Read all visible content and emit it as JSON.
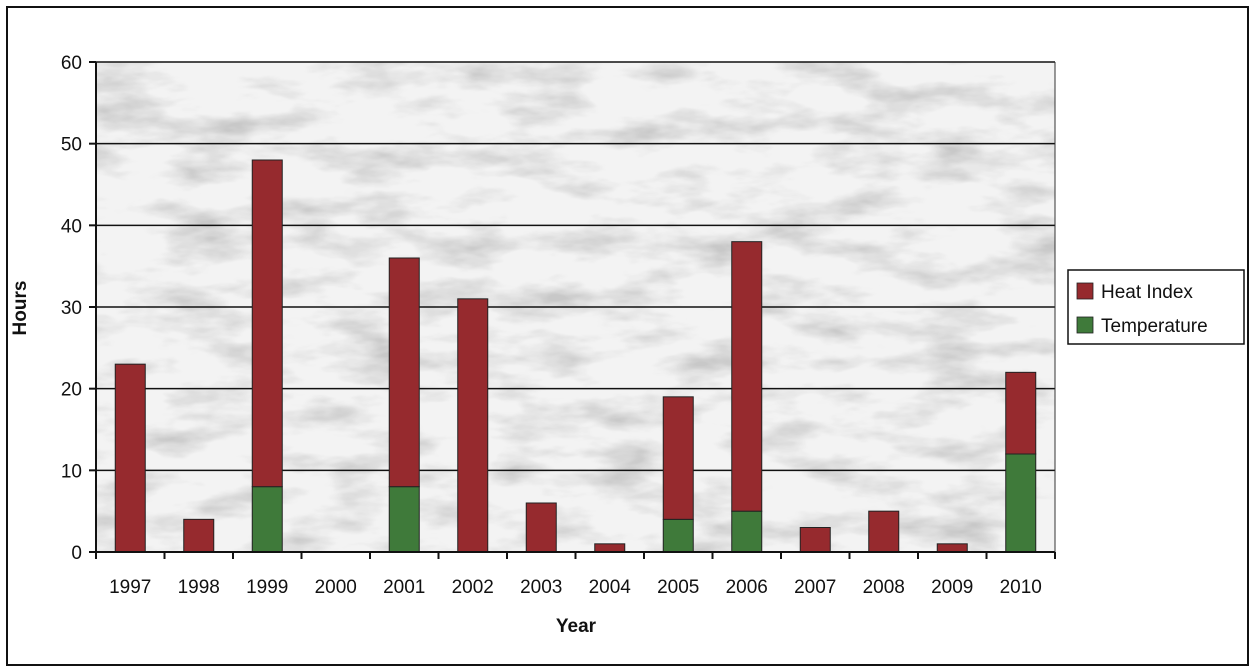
{
  "chart_data": {
    "type": "bar",
    "stacked": true,
    "title": "",
    "xlabel": "Year",
    "ylabel": "Hours",
    "ylim": [
      0,
      60
    ],
    "yticks": [
      0,
      10,
      20,
      30,
      40,
      50,
      60
    ],
    "categories": [
      "1997",
      "1998",
      "1999",
      "2000",
      "2001",
      "2002",
      "2003",
      "2004",
      "2005",
      "2006",
      "2007",
      "2008",
      "2009",
      "2010"
    ],
    "series": [
      {
        "name": "Temperature",
        "color": "#3f7a3a",
        "values": [
          0,
          0,
          8,
          0,
          8,
          0,
          0,
          0,
          4,
          5,
          0,
          0,
          0,
          12
        ]
      },
      {
        "name": "Heat Index",
        "color": "#962a2e",
        "values": [
          23,
          4,
          40,
          0,
          28,
          31,
          6,
          1,
          15,
          33,
          3,
          5,
          1,
          10
        ]
      }
    ],
    "legend_order": [
      "Heat Index",
      "Temperature"
    ],
    "legend_position": "right",
    "grid": true,
    "plot_background": "marble-gray"
  }
}
